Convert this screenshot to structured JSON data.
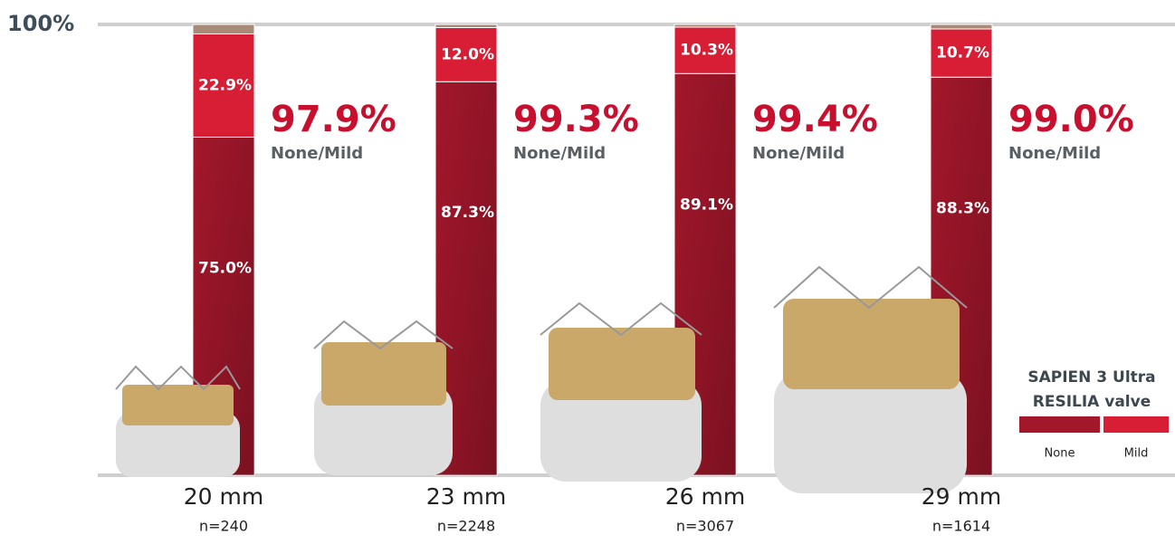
{
  "chart_data": {
    "type": "stacked-bar",
    "categories": [
      "20 mm",
      "23 mm",
      "26 mm",
      "29 mm"
    ],
    "sample_sizes": [
      "n=240",
      "n=2248",
      "n=3067",
      "n=1614"
    ],
    "series": [
      {
        "name": "None",
        "color": "#a3172b",
        "values": [
          75.0,
          87.3,
          89.1,
          88.3
        ],
        "value_labels": [
          "75.0%",
          "87.3%",
          "89.1%",
          "88.3%"
        ]
      },
      {
        "name": "Mild",
        "color": "#d81e34",
        "values": [
          22.9,
          12.0,
          10.3,
          10.7
        ],
        "value_labels": [
          "22.9%",
          "12.0%",
          "10.3%",
          "10.7%"
        ]
      },
      {
        "color": "#a88a78",
        "values": [
          2.1,
          0.7,
          0.6,
          1.0
        ]
      }
    ],
    "totals": {
      "values": [
        97.9,
        99.3,
        99.4,
        99.0
      ],
      "value_labels": [
        "97.9%",
        "99.3%",
        "99.4%",
        "99.0%"
      ],
      "caption": "None/Mild",
      "color": "#c8102e"
    },
    "ylim": [
      0,
      100
    ],
    "yticks": [
      {
        "value": 100,
        "label": "100%"
      }
    ],
    "legend_title": "SAPIEN 3 Ultra RESILIA valve"
  }
}
